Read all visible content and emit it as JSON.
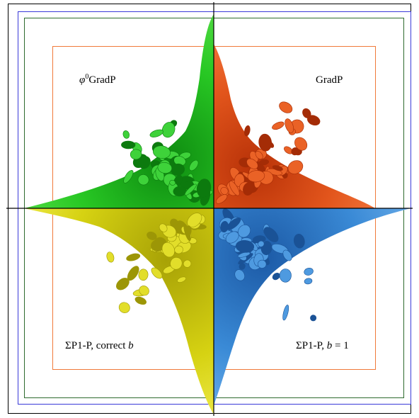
{
  "colors": {
    "outer_frame": "#000000",
    "blue_box": "#3a3ad8",
    "green_box": "#2e6b2e",
    "orange_box": "#f07a3a",
    "quadrant_top_left": "#22c21e",
    "quadrant_top_right": "#e0501a",
    "quadrant_bottom_left": "#d8d414",
    "quadrant_bottom_right": "#3a8ad6",
    "axes": "#000000"
  },
  "labels": {
    "top_left": {
      "prefix": "φ",
      "superscript": "0",
      "suffix": "GradP"
    },
    "top_right": {
      "text": "GradP"
    },
    "bottom_left": {
      "text": "ΣP1-P, correct ",
      "italic": "b"
    },
    "bottom_right": {
      "text": "ΣP1-P, ",
      "italic": "b",
      "tail": " = 1"
    }
  }
}
